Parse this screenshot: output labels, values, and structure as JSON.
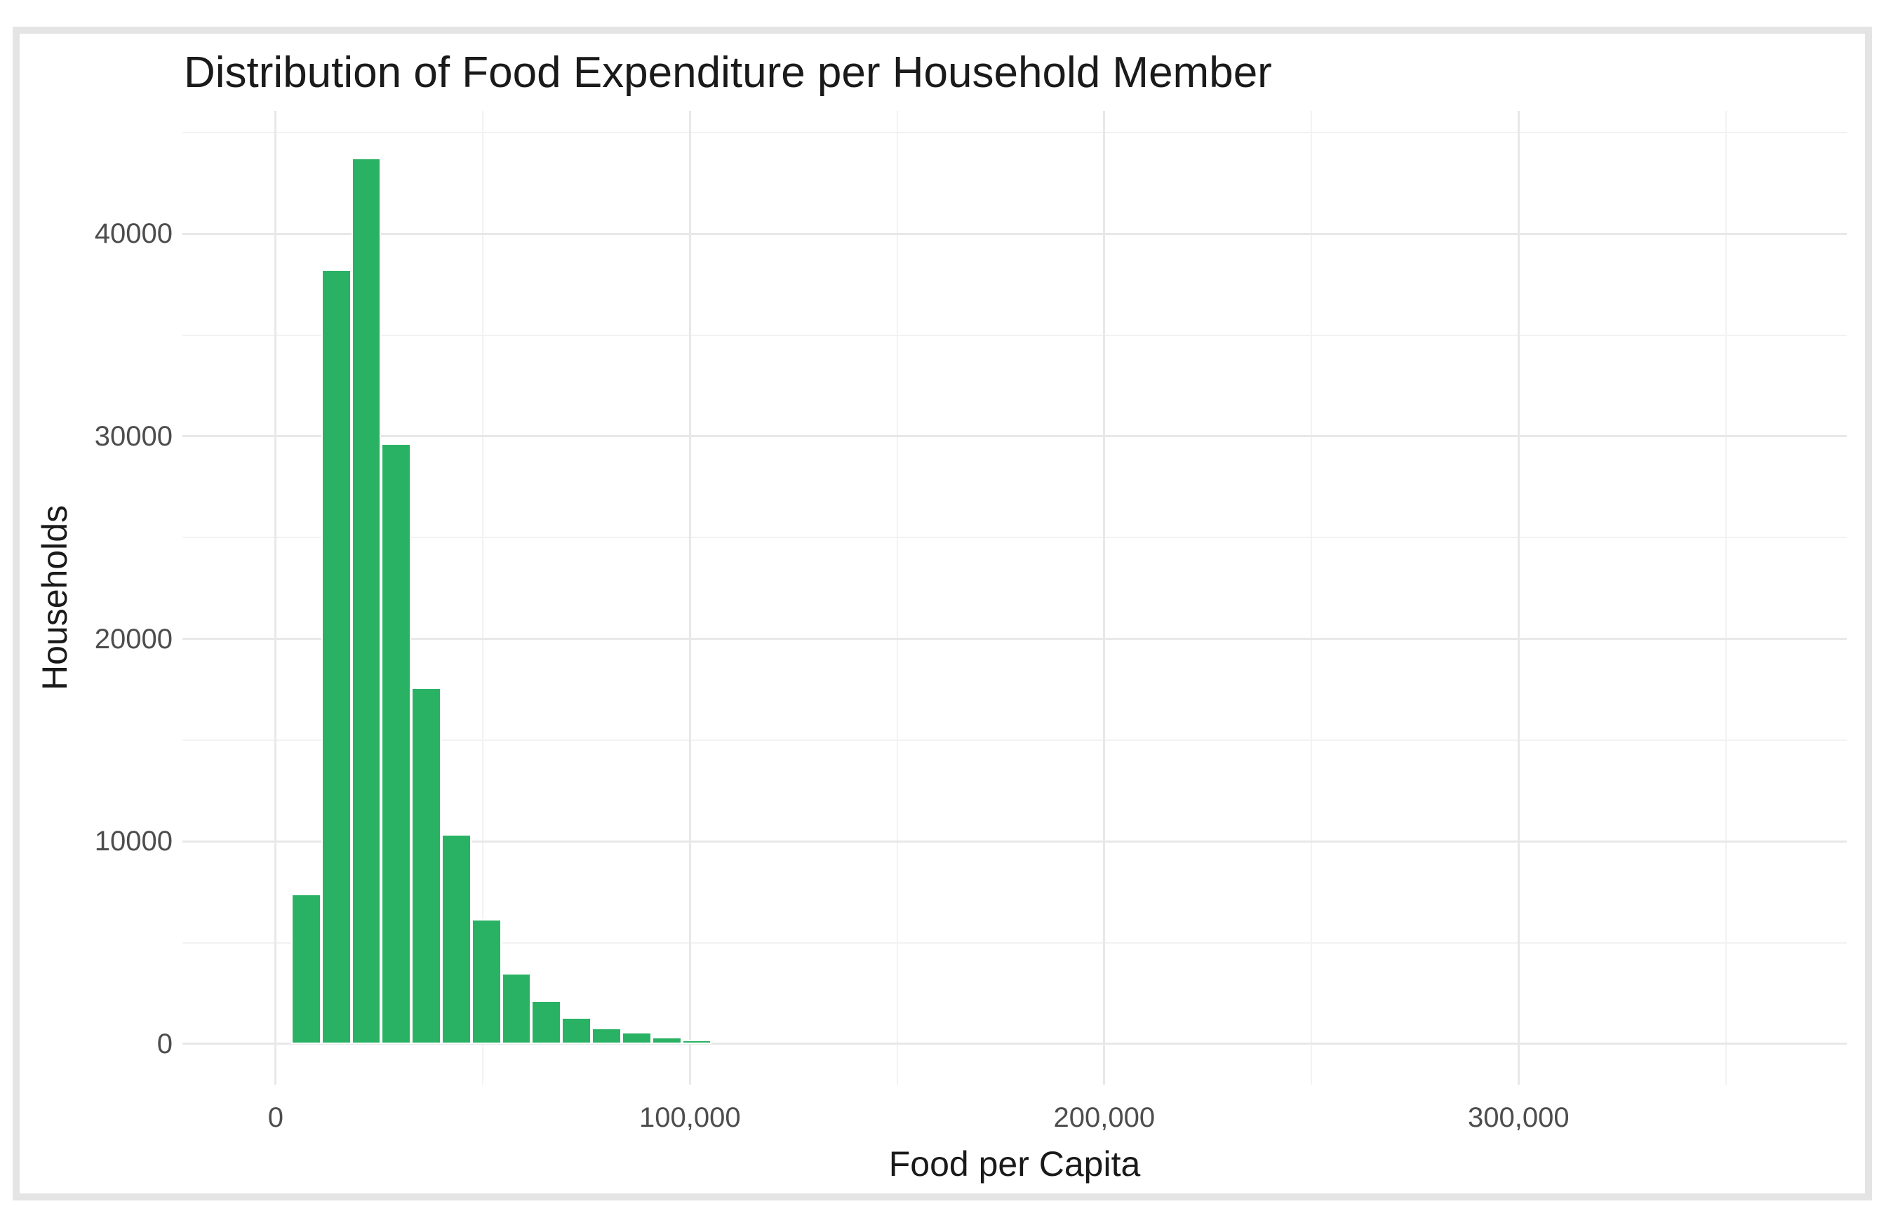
{
  "title": "Distribution of Food Expenditure per Household Member",
  "colors": {
    "background": "#ffffff",
    "frame": "#e4e4e4",
    "bar_fill": "#2ab264",
    "bar_stroke": "#ffffff",
    "grid_major": "#e8e8e8",
    "grid_minor": "#f2f2f2",
    "tick_label": "#4d4d4d",
    "text": "#1a1a1a"
  },
  "chart_data": {
    "type": "bar",
    "subtype": "histogram",
    "title": "Distribution of Food Expenditure per Household Member",
    "xlabel": "Food per Capita",
    "ylabel": "Households",
    "grid": "on",
    "legend": "none",
    "bin_width": 7250,
    "bins": [
      {
        "start": 3750,
        "end": 11000,
        "count": 7400
      },
      {
        "start": 11000,
        "end": 18250,
        "count": 38250
      },
      {
        "start": 18250,
        "end": 25500,
        "count": 43750
      },
      {
        "start": 25500,
        "end": 32750,
        "count": 29650
      },
      {
        "start": 32750,
        "end": 40000,
        "count": 17600
      },
      {
        "start": 40000,
        "end": 47250,
        "count": 10350
      },
      {
        "start": 47250,
        "end": 54500,
        "count": 6150
      },
      {
        "start": 54500,
        "end": 61750,
        "count": 3500
      },
      {
        "start": 61750,
        "end": 69000,
        "count": 2150
      },
      {
        "start": 69000,
        "end": 76250,
        "count": 1300
      },
      {
        "start": 76250,
        "end": 83500,
        "count": 800
      },
      {
        "start": 83500,
        "end": 90750,
        "count": 580
      },
      {
        "start": 90750,
        "end": 98000,
        "count": 350
      },
      {
        "start": 98000,
        "end": 105250,
        "count": 200
      }
    ],
    "xlim": [
      -22500,
      379200
    ],
    "ylim": [
      -2012,
      46070
    ],
    "x_ticks": [
      {
        "value": 0,
        "label": "0"
      },
      {
        "value": 100000,
        "label": "100,000"
      },
      {
        "value": 200000,
        "label": "200,000"
      },
      {
        "value": 300000,
        "label": "300,000"
      }
    ],
    "x_minor_ticks": [
      50000,
      150000,
      250000,
      350000
    ],
    "y_ticks": [
      {
        "value": 0,
        "label": "0"
      },
      {
        "value": 10000,
        "label": "10000"
      },
      {
        "value": 20000,
        "label": "20000"
      },
      {
        "value": 30000,
        "label": "30000"
      },
      {
        "value": 40000,
        "label": "40000"
      }
    ],
    "y_minor_ticks": [
      5000,
      15000,
      25000,
      35000,
      45000
    ]
  }
}
